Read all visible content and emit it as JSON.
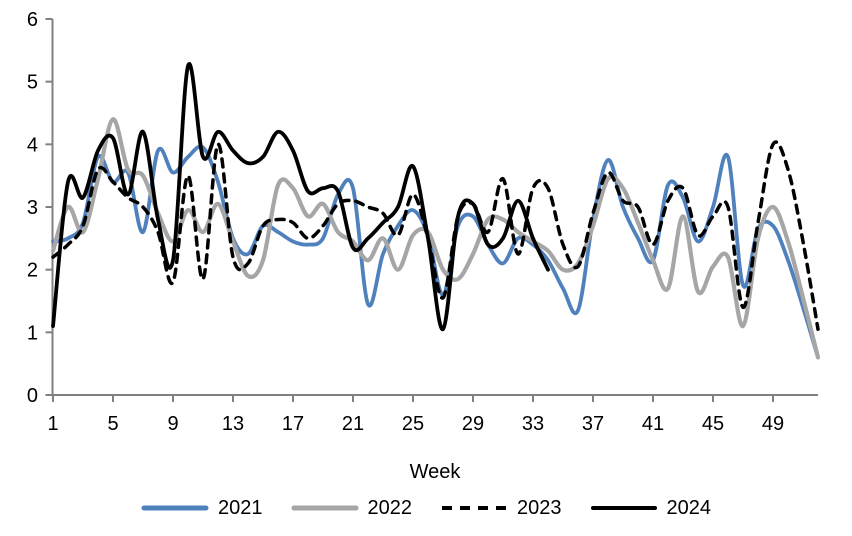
{
  "chart_data": {
    "type": "line",
    "title": "",
    "x_axis_label": "Week",
    "y_axis_label": "",
    "x_range": [
      1,
      52
    ],
    "y_range": [
      0,
      6
    ],
    "x_ticks": [
      1,
      5,
      9,
      13,
      17,
      21,
      25,
      29,
      33,
      37,
      41,
      45,
      49
    ],
    "y_ticks": [
      0,
      1,
      2,
      3,
      4,
      5,
      6
    ],
    "grid": false,
    "legend_position": "bottom",
    "axis_color": "#808080",
    "text_color": "#000000",
    "x_unit": "week_number",
    "series": [
      {
        "name": "2021",
        "color": "#4F81BD",
        "line_style": "solid",
        "start_week": 1,
        "values": [
          2.45,
          2.5,
          2.75,
          3.8,
          3.4,
          3.55,
          2.6,
          3.9,
          3.55,
          3.8,
          3.95,
          3.4,
          2.5,
          2.25,
          2.7,
          2.6,
          2.45,
          2.4,
          2.5,
          3.2,
          3.3,
          1.45,
          2.25,
          2.7,
          2.95,
          2.55,
          1.6,
          2.7,
          2.85,
          2.4,
          2.1,
          2.5,
          2.4,
          2.15,
          1.7,
          1.35,
          2.8,
          3.75,
          3.0,
          2.5,
          2.15,
          3.35,
          3.15,
          2.45,
          3.0,
          3.8,
          1.75,
          2.65,
          2.7,
          2.15,
          1.4,
          0.6
        ]
      },
      {
        "name": "2022",
        "color": "#A6A6A6",
        "line_style": "solid",
        "start_week": 1,
        "values": [
          2.3,
          3.0,
          2.6,
          3.45,
          4.4,
          3.6,
          3.5,
          2.9,
          2.45,
          2.95,
          2.6,
          3.05,
          2.45,
          1.9,
          2.15,
          3.35,
          3.3,
          2.85,
          3.05,
          2.6,
          2.45,
          2.15,
          2.5,
          2.0,
          2.55,
          2.6,
          2.0,
          1.85,
          2.25,
          2.8,
          2.8,
          2.6,
          2.45,
          2.3,
          2.0,
          2.1,
          2.7,
          3.45,
          3.3,
          2.75,
          2.15,
          1.7,
          2.85,
          1.65,
          2.05,
          2.2,
          1.1,
          2.5,
          3.0,
          2.45,
          1.55,
          0.6
        ]
      },
      {
        "name": "2023",
        "color": "#000000",
        "line_style": "dashed",
        "start_week": 1,
        "values": [
          2.2,
          2.4,
          2.7,
          3.6,
          3.4,
          3.15,
          3.0,
          2.6,
          1.8,
          3.5,
          1.85,
          4.0,
          2.2,
          2.1,
          2.7,
          2.8,
          2.75,
          2.5,
          2.7,
          3.05,
          3.1,
          3.0,
          2.9,
          2.55,
          3.2,
          2.5,
          1.55,
          2.85,
          3.05,
          2.6,
          3.45,
          2.25,
          3.3,
          3.3,
          2.4,
          2.05,
          2.9,
          3.55,
          3.1,
          3.0,
          2.4,
          3.1,
          3.3,
          2.55,
          2.85,
          3.0,
          1.4,
          2.75,
          4.0,
          3.6,
          2.45,
          1.05
        ]
      },
      {
        "name": "2024",
        "color": "#000000",
        "line_style": "solid",
        "start_week": 1,
        "values": [
          1.1,
          3.4,
          3.15,
          3.9,
          4.1,
          3.2,
          4.2,
          2.8,
          2.15,
          5.25,
          3.8,
          4.2,
          3.9,
          3.7,
          3.8,
          4.2,
          3.9,
          3.25,
          3.3,
          3.25,
          2.35,
          2.5,
          2.75,
          3.0,
          3.65,
          2.5,
          1.05,
          2.85,
          3.05,
          2.4,
          2.5,
          3.1,
          2.5,
          2.0
        ]
      }
    ]
  }
}
